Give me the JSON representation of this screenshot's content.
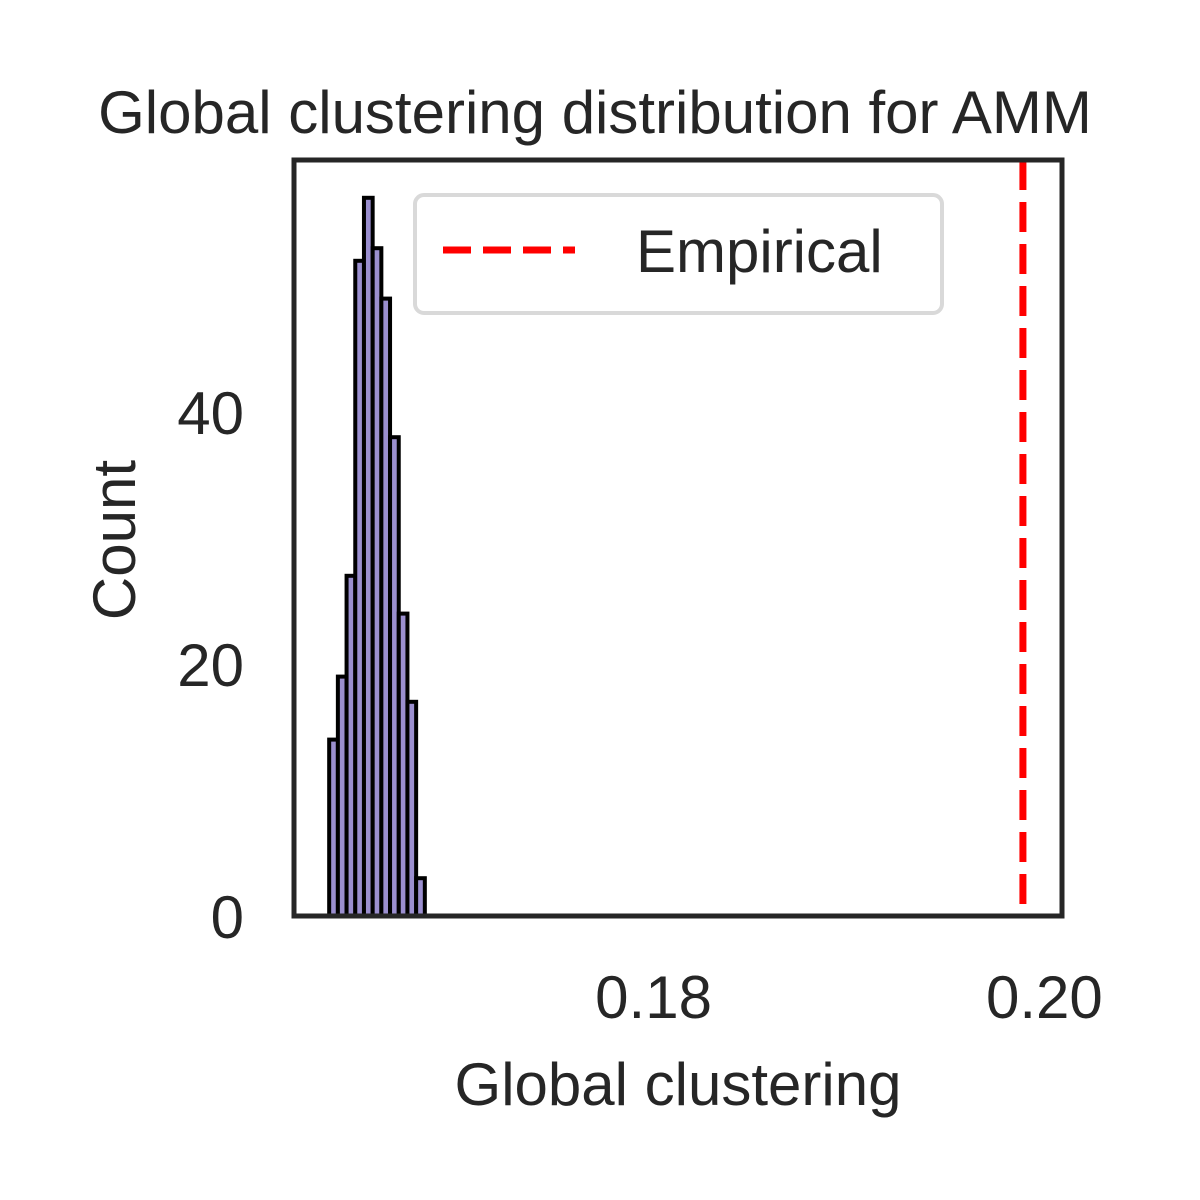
{
  "chart_data": {
    "type": "bar",
    "title": "Global clustering distribution for AMM",
    "xlabel": "Global clustering",
    "ylabel": "Count",
    "xlim": [
      0.1616,
      0.2009
    ],
    "ylim": [
      0,
      60
    ],
    "xticks": [
      0.18,
      0.2
    ],
    "xtick_labels": [
      "0.18",
      "0.20"
    ],
    "yticks": [
      0,
      20,
      40
    ],
    "ytick_labels": [
      "0",
      "20",
      "40"
    ],
    "grid": false,
    "legend": {
      "position": "top-right",
      "entries": [
        "Empirical"
      ]
    },
    "histogram": {
      "bin_start": 0.1634,
      "bin_width": 0.000445,
      "counts": [
        14,
        19,
        27,
        52,
        57,
        53,
        49,
        38,
        24,
        17,
        3
      ],
      "fill_color": "#9b8fcf",
      "edge_color": "#000000"
    },
    "reference_line": {
      "label": "Empirical",
      "x": 0.1989,
      "color": "#ff0000",
      "style": "dashed"
    }
  }
}
